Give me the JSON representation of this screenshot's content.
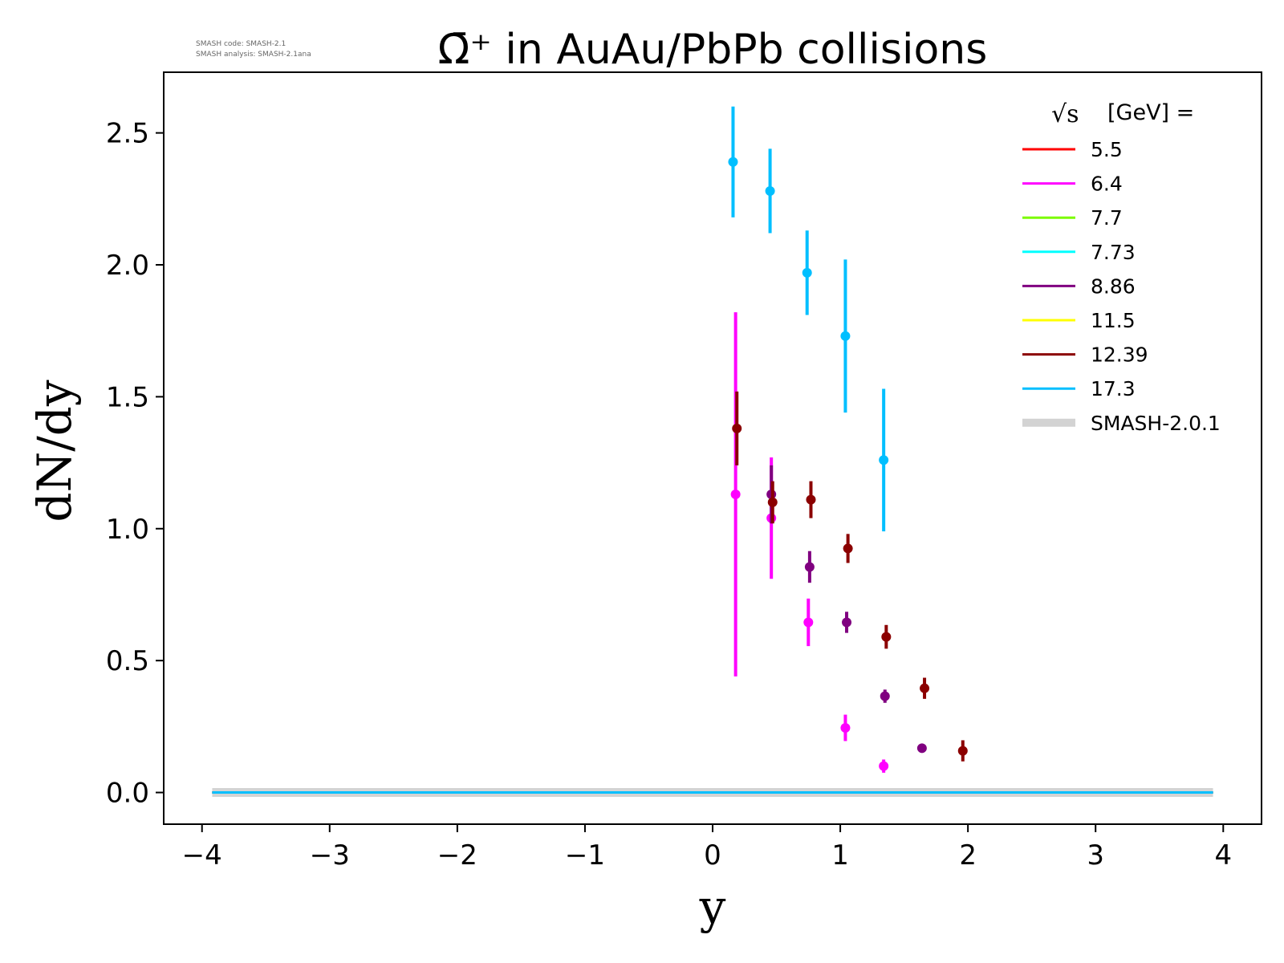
{
  "chart_data": {
    "type": "scatter",
    "title": "Ω̄⁺ in AuAu/PbPb collisions",
    "xlabel": "y",
    "ylabel": "dN/dy",
    "xlim": [
      -4.3,
      4.3
    ],
    "ylim": [
      -0.12,
      2.73
    ],
    "x_ticks": [
      -4,
      -3,
      -2,
      -1,
      0,
      1,
      2,
      3,
      4
    ],
    "x_tick_labels": [
      "−4",
      "−3",
      "−2",
      "−1",
      "0",
      "1",
      "2",
      "3",
      "4"
    ],
    "y_ticks": [
      0.0,
      0.5,
      1.0,
      1.5,
      2.0,
      2.5
    ],
    "y_tick_labels": [
      "0.0",
      "0.5",
      "1.0",
      "1.5",
      "2.0",
      "2.5"
    ],
    "grid": false,
    "watermark": {
      "line1": "SMASH code:      SMASH-2.1",
      "line2": "SMASH analysis: SMASH-2.1ana"
    },
    "legend": {
      "position": "top-right",
      "title_suffix": "[GeV] =",
      "title_sqrt_symbol": "√s",
      "entries": [
        {
          "label": "5.5",
          "color": "#ff0000"
        },
        {
          "label": "6.4",
          "color": "#ff00ff"
        },
        {
          "label": "7.7",
          "color": "#7cfc00"
        },
        {
          "label": "7.73",
          "color": "#00ffff"
        },
        {
          "label": "8.86",
          "color": "#800080"
        },
        {
          "label": "11.5",
          "color": "#ffff00"
        },
        {
          "label": "12.39",
          "color": "#8b0000"
        },
        {
          "label": "17.3",
          "color": "#00bfff"
        },
        {
          "label": "SMASH-2.0.1",
          "color": "#d3d3d3"
        }
      ]
    },
    "series": [
      {
        "name": "6.4",
        "color": "#ff00ff",
        "points": [
          {
            "x": 0.18,
            "y": 1.13,
            "err": 0.69
          },
          {
            "x": 0.46,
            "y": 1.04,
            "err": 0.23
          },
          {
            "x": 0.75,
            "y": 0.645,
            "err": 0.09
          },
          {
            "x": 1.04,
            "y": 0.245,
            "err": 0.05
          },
          {
            "x": 1.34,
            "y": 0.1,
            "err": 0.025
          }
        ]
      },
      {
        "name": "8.86",
        "color": "#800080",
        "points": [
          {
            "x": 0.46,
            "y": 1.13,
            "err": 0.11
          },
          {
            "x": 0.76,
            "y": 0.855,
            "err": 0.06
          },
          {
            "x": 1.05,
            "y": 0.645,
            "err": 0.04
          },
          {
            "x": 1.35,
            "y": 0.365,
            "err": 0.025
          },
          {
            "x": 1.64,
            "y": 0.168,
            "err": 0.015
          }
        ]
      },
      {
        "name": "12.39",
        "color": "#8b0000",
        "points": [
          {
            "x": 0.19,
            "y": 1.38,
            "err": 0.14
          },
          {
            "x": 0.47,
            "y": 1.1,
            "err": 0.08
          },
          {
            "x": 0.77,
            "y": 1.11,
            "err": 0.07
          },
          {
            "x": 1.06,
            "y": 0.925,
            "err": 0.055
          },
          {
            "x": 1.36,
            "y": 0.59,
            "err": 0.045
          },
          {
            "x": 1.66,
            "y": 0.395,
            "err": 0.04
          },
          {
            "x": 1.96,
            "y": 0.158,
            "err": 0.04
          }
        ]
      },
      {
        "name": "17.3",
        "color": "#00bfff",
        "points": [
          {
            "x": 0.16,
            "y": 2.39,
            "err": 0.21
          },
          {
            "x": 0.45,
            "y": 2.28,
            "err": 0.16
          },
          {
            "x": 0.74,
            "y": 1.97,
            "err": 0.16
          },
          {
            "x": 1.04,
            "y": 1.73,
            "err": 0.29
          },
          {
            "x": 1.34,
            "y": 1.26,
            "err": 0.27
          }
        ]
      }
    ],
    "model_curves": {
      "x_range": [
        -3.92,
        3.92
      ],
      "y": 0.0,
      "colors": [
        "#d3d3d3",
        "#ff0000",
        "#ff00ff",
        "#7cfc00",
        "#00ffff",
        "#800080",
        "#ffff00",
        "#8b0000",
        "#00bfff"
      ]
    }
  }
}
